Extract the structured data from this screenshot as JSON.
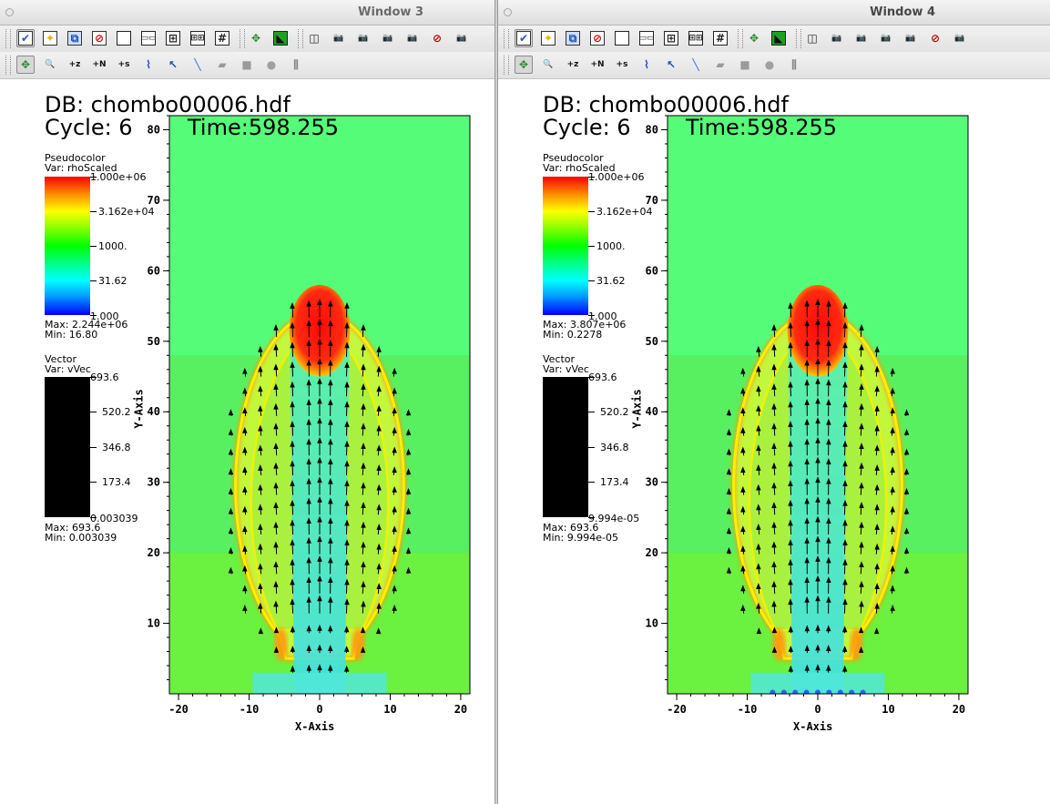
{
  "windows": [
    {
      "id": "win3",
      "title": "Window 3",
      "db_label": "DB: chombo00006.hdf",
      "cycle_label": "Cycle: 6",
      "time_label": "Time:598.255",
      "pseudocolor": {
        "title": "Pseudocolor",
        "var": "Var: rhoScaled",
        "ticks": [
          "1.000e+06",
          "3.162e+04",
          "1000.",
          "31.62",
          "1.000"
        ],
        "max": "Max:  2.244e+06",
        "min": "Min:  16.80"
      },
      "vector": {
        "title": "Vector",
        "var": "Var: vVec",
        "ticks": [
          "693.6",
          "520.2",
          "346.8",
          "173.4",
          "0.003039"
        ],
        "max": "Max:  693.6",
        "min": "Min:  0.003039"
      },
      "x_axis_label": "X-Axis",
      "y_axis_label": "Y-Axis"
    },
    {
      "id": "win4",
      "title": "Window 4",
      "db_label": "DB: chombo00006.hdf",
      "cycle_label": "Cycle: 6",
      "time_label": "Time:598.255",
      "pseudocolor": {
        "title": "Pseudocolor",
        "var": "Var: rhoScaled",
        "ticks": [
          "1.000e+06",
          "3.162e+04",
          "1000.",
          "31.62",
          "1.000"
        ],
        "max": "Max:  3.807e+06",
        "min": "Min:  0.2278"
      },
      "vector": {
        "title": "Vector",
        "var": "Var: vVec",
        "ticks": [
          "693.6",
          "520.2",
          "346.8",
          "173.4",
          "9.994e-05"
        ],
        "max": "Max:  693.6",
        "min": "Min:  9.994e-05"
      },
      "x_axis_label": "X-Axis",
      "y_axis_label": "Y-Axis"
    }
  ],
  "plot_axes": {
    "x_ticks": [
      "-20",
      "-10",
      "0",
      "10",
      "20"
    ],
    "y_ticks": [
      "10",
      "20",
      "30",
      "40",
      "50",
      "60",
      "70",
      "80"
    ],
    "xlim": [
      -21.3,
      21.3
    ],
    "ylim": [
      0,
      82
    ]
  },
  "toolbar_icons": {
    "row1": [
      "active-window-icon",
      "new-window-icon",
      "clone-window-icon",
      "delete-window-icon",
      "layout-1x1-icon",
      "layout-1x2-icon",
      "layout-2x2-icon",
      "layout-2x4-icon",
      "layout-3x3-icon",
      "navigate-icon",
      "lock-view-icon",
      "perspective-icon",
      "camera-icon",
      "camera-icon",
      "camera-icon",
      "camera-icon",
      "camera-off-icon",
      "camera-icon"
    ],
    "row2": [
      "navigate-icon",
      "zoom-icon",
      "zone-pick-icon",
      "node-pick-icon",
      "spreadsheet-pick-icon",
      "lineout-icon",
      "pick-point-icon",
      "line-tool-icon",
      "plane-tool-icon",
      "box-tool-icon",
      "sphere-tool-icon",
      "axis-restriction-icon"
    ]
  },
  "colors": {
    "field_background": "#55fc78",
    "shell": "#ffff00",
    "core": "#ff1010"
  }
}
